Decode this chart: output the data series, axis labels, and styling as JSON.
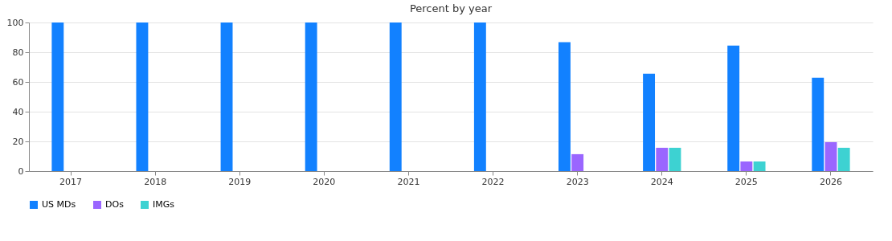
{
  "chart_data": {
    "type": "bar",
    "title": "Percent by year",
    "categories": [
      "2017",
      "2018",
      "2019",
      "2020",
      "2021",
      "2022",
      "2023",
      "2024",
      "2025",
      "2026"
    ],
    "series": [
      {
        "name": "US MDs",
        "color": "#1281ff",
        "values": [
          100,
          100,
          100,
          100,
          100,
          100,
          86.8,
          65.5,
          84.5,
          62.8
        ]
      },
      {
        "name": "DOs",
        "color": "#9a66ff",
        "values": [
          null,
          null,
          null,
          null,
          null,
          null,
          11.4,
          15.7,
          6.5,
          19.5
        ]
      },
      {
        "name": "IMGs",
        "color": "#3dd2d2",
        "values": [
          null,
          null,
          null,
          null,
          null,
          null,
          null,
          15.7,
          6.5,
          15.7
        ]
      }
    ],
    "ylim": [
      0,
      100
    ],
    "yticks": [
      0,
      20,
      40,
      60,
      80,
      100
    ],
    "grid": "y",
    "legend": "bottom"
  }
}
